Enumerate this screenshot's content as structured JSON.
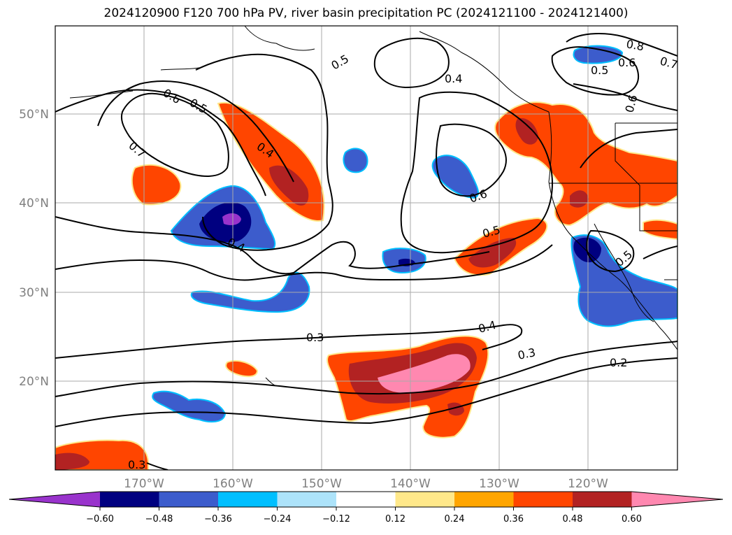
{
  "title": "2024120900 F120 700 hPa PV, river basin precipitation PC (2024121100 - 2024121400)",
  "map": {
    "lon_labels": [
      "170°W",
      "160°W",
      "150°W",
      "140°W",
      "130°W",
      "120°W"
    ],
    "lat_labels": [
      "50°N",
      "40°N",
      "30°N",
      "20°N"
    ],
    "contour_labels": [
      {
        "id": "c1",
        "text": "0.5"
      },
      {
        "id": "c2",
        "text": "0.4"
      },
      {
        "id": "c3",
        "text": "0.6"
      },
      {
        "id": "c4",
        "text": "0.5"
      },
      {
        "id": "c5",
        "text": "0.7"
      },
      {
        "id": "c6",
        "text": "0.4"
      },
      {
        "id": "c7",
        "text": "0.4"
      },
      {
        "id": "c8",
        "text": "0.6"
      },
      {
        "id": "c9",
        "text": "0.5"
      },
      {
        "id": "c10",
        "text": "0.8"
      },
      {
        "id": "c11",
        "text": "0.6"
      },
      {
        "id": "c12",
        "text": "0.7"
      },
      {
        "id": "c13",
        "text": "0.5"
      },
      {
        "id": "c14",
        "text": "0.6"
      },
      {
        "id": "c15",
        "text": "0.5"
      },
      {
        "id": "c16",
        "text": "0.3"
      },
      {
        "id": "c17",
        "text": "0.4"
      },
      {
        "id": "c18",
        "text": "0.3"
      },
      {
        "id": "c19",
        "text": "0.2"
      },
      {
        "id": "c20",
        "text": "0.3"
      }
    ]
  },
  "colorbar": {
    "ticks": [
      "−0.60",
      "−0.48",
      "−0.36",
      "−0.24",
      "−0.12",
      "0.12",
      "0.24",
      "0.36",
      "0.48",
      "0.60"
    ],
    "colors": [
      "#9933cc",
      "#000080",
      "#3c5ccc",
      "#00bfff",
      "#ade3fa",
      "#ffffff",
      "#ffe88a",
      "#ffa500",
      "#ff4500",
      "#b22222",
      "#ff88b0"
    ]
  }
}
